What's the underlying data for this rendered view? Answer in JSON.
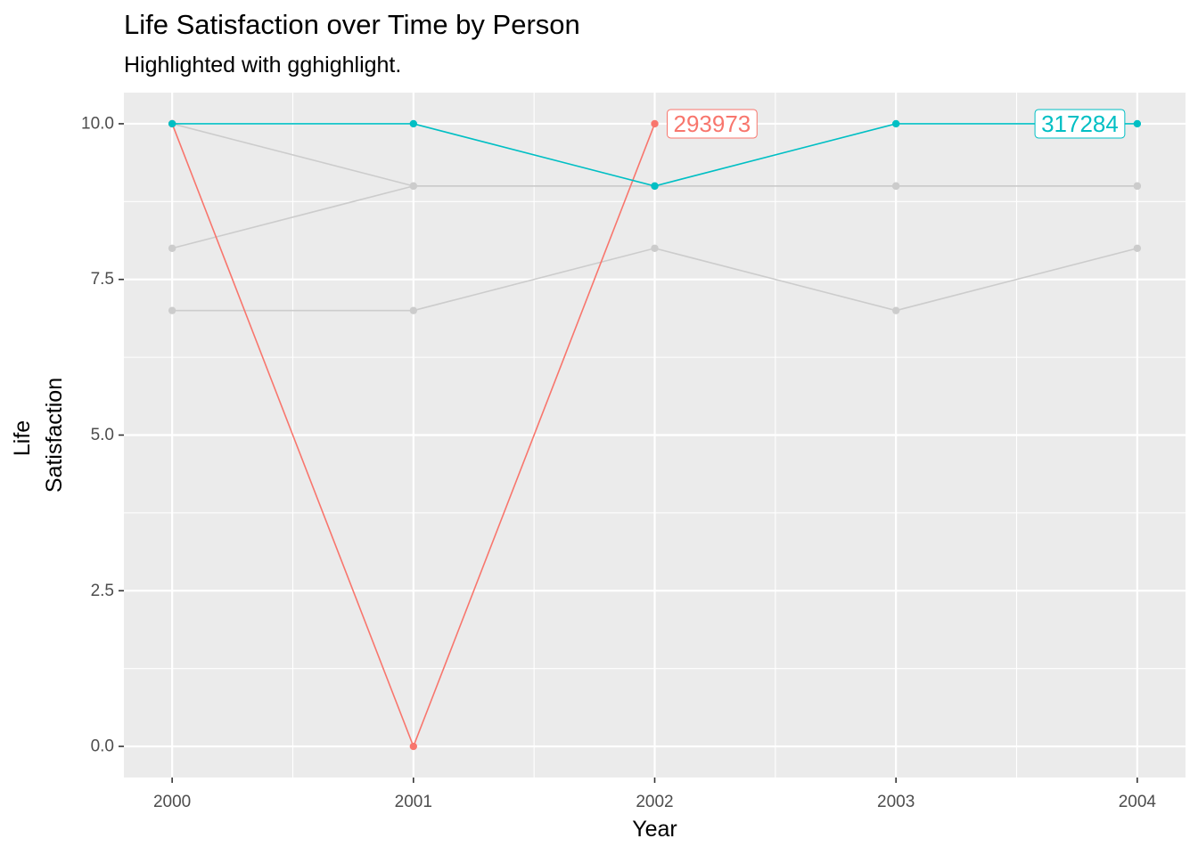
{
  "chart_data": {
    "type": "line",
    "title": "Life Satisfaction over Time by Person",
    "subtitle": "Highlighted with gghighlight.",
    "xlabel": "Year",
    "ylabel": [
      "Life",
      "Satisfaction"
    ],
    "x": [
      2000,
      2001,
      2002,
      2003,
      2004
    ],
    "x_tick_labels": [
      "2000",
      "2001",
      "2002",
      "2003",
      "2004"
    ],
    "y_ticks": [
      0,
      2.5,
      5,
      7.5,
      10
    ],
    "y_tick_labels": [
      "0.0",
      "2.5",
      "5.0",
      "7.5",
      "10.0"
    ],
    "xlim": [
      1999.8,
      2004.2
    ],
    "ylim": [
      -0.5,
      10.5
    ],
    "grid": true,
    "background_series_color": "#cccccc",
    "panel_background": "#ebebeb",
    "grid_color": "#ffffff",
    "series": [
      {
        "values": [
          10,
          9,
          9,
          9,
          9
        ],
        "highlighted": false
      },
      {
        "values": [
          8,
          9,
          9,
          9,
          9
        ],
        "highlighted": false
      },
      {
        "values": [
          7,
          7,
          8,
          7,
          8
        ],
        "highlighted": false
      },
      {
        "name": "293973",
        "x": [
          2000,
          2001,
          2002
        ],
        "values": [
          10,
          0,
          10
        ],
        "highlighted": true,
        "color": "#F8766D",
        "label_at": 2002
      },
      {
        "name": "317284",
        "x": [
          2000,
          2001,
          2002,
          2003,
          2004
        ],
        "values": [
          10,
          10,
          9,
          10,
          10
        ],
        "highlighted": true,
        "color": "#00BFC4",
        "label_at": 2004
      }
    ]
  }
}
